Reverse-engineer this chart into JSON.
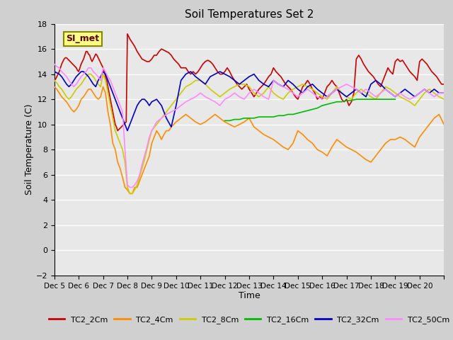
{
  "title": "Soil Temperatures Set 2",
  "xlabel": "Time",
  "ylabel": "Soil Temperature (C)",
  "ylim": [
    -2,
    18
  ],
  "yticks": [
    -2,
    0,
    2,
    4,
    6,
    8,
    10,
    12,
    14,
    16,
    18
  ],
  "x_start": 4,
  "x_end": 20,
  "x_tick_positions": [
    4,
    5,
    6,
    7,
    8,
    9,
    10,
    11,
    12,
    13,
    14,
    15,
    16,
    17,
    18,
    19,
    20
  ],
  "x_labels": [
    "Dec 5",
    "Dec 6",
    "Dec 7",
    "Dec 8",
    "Dec 9",
    "Dec 10",
    "Dec 11",
    "Dec 12",
    "Dec 13",
    "Dec 14",
    "Dec 15",
    "Dec 16",
    "Dec 17",
    "Dec 18",
    "Dec 19",
    "Dec 20",
    ""
  ],
  "background_color": "#e8e8e8",
  "grid_color": "#ffffff",
  "legend_entries": [
    "TC2_2Cm",
    "TC2_4Cm",
    "TC2_8Cm",
    "TC2_16Cm",
    "TC2_32Cm",
    "TC2_50Cm"
  ],
  "line_colors": [
    "#cc0000",
    "#ff8c00",
    "#cccc00",
    "#00bb00",
    "#0000cc",
    "#ff88ff"
  ],
  "annotation": {
    "text": "SI_met",
    "bg": "#ffff88",
    "border": "#888800"
  },
  "series": {
    "TC2_2Cm": {
      "x": [
        4.0,
        4.05,
        4.1,
        4.15,
        4.2,
        4.25,
        4.3,
        4.35,
        4.4,
        4.45,
        4.5,
        4.55,
        4.6,
        4.65,
        4.7,
        4.75,
        4.8,
        4.85,
        4.9,
        4.95,
        5.0,
        5.05,
        5.1,
        5.15,
        5.2,
        5.25,
        5.3,
        5.35,
        5.4,
        5.45,
        5.5,
        5.55,
        5.6,
        5.65,
        5.7,
        5.75,
        5.8,
        5.85,
        5.9,
        5.95,
        6.0,
        6.05,
        6.1,
        6.15,
        6.2,
        6.25,
        6.3,
        6.35,
        6.4,
        6.45,
        6.5,
        6.55,
        6.6,
        6.65,
        6.7,
        6.75,
        6.8,
        6.85,
        6.9,
        6.95,
        7.0,
        7.1,
        7.2,
        7.3,
        7.4,
        7.5,
        7.6,
        7.7,
        7.8,
        7.9,
        8.0,
        8.1,
        8.2,
        8.3,
        8.4,
        8.5,
        8.6,
        8.7,
        8.8,
        8.9,
        9.0,
        9.1,
        9.2,
        9.3,
        9.4,
        9.5,
        9.6,
        9.7,
        9.8,
        9.9,
        10.0,
        10.1,
        10.2,
        10.3,
        10.4,
        10.5,
        10.6,
        10.7,
        10.8,
        10.9,
        11.0,
        11.1,
        11.2,
        11.3,
        11.4,
        11.5,
        11.6,
        11.7,
        11.8,
        11.9,
        12.0,
        12.1,
        12.2,
        12.3,
        12.4,
        12.5,
        12.6,
        12.7,
        12.8,
        12.9,
        13.0,
        13.1,
        13.2,
        13.3,
        13.4,
        13.5,
        13.6,
        13.7,
        13.8,
        13.9,
        14.0,
        14.1,
        14.2,
        14.3,
        14.4,
        14.5,
        14.6,
        14.7,
        14.8,
        14.9,
        15.0,
        15.1,
        15.2,
        15.3,
        15.4,
        15.5,
        15.6,
        15.7,
        15.8,
        15.9,
        16.0,
        16.1,
        16.2,
        16.3,
        16.4,
        16.5,
        16.6,
        16.7,
        16.8,
        16.9,
        17.0,
        17.1,
        17.2,
        17.3,
        17.4,
        17.5,
        17.6,
        17.7,
        17.8,
        17.9,
        18.0,
        18.1,
        18.2,
        18.3,
        18.4,
        18.5,
        18.6,
        18.7,
        18.8,
        18.9,
        19.0,
        19.1,
        19.2,
        19.3,
        19.4,
        19.5,
        19.6,
        19.7,
        19.8,
        19.9,
        20.0
      ],
      "y": [
        13.5,
        13.6,
        13.8,
        14.0,
        14.2,
        14.5,
        14.8,
        15.0,
        15.2,
        15.3,
        15.3,
        15.2,
        15.1,
        15.0,
        14.9,
        14.8,
        14.7,
        14.6,
        14.5,
        14.3,
        14.2,
        14.5,
        14.8,
        15.0,
        15.2,
        15.5,
        15.8,
        15.8,
        15.6,
        15.5,
        15.2,
        15.0,
        15.2,
        15.4,
        15.6,
        15.5,
        15.3,
        15.1,
        14.9,
        14.7,
        14.5,
        14.2,
        13.8,
        13.5,
        13.0,
        12.5,
        12.0,
        11.5,
        11.0,
        10.5,
        10.0,
        9.8,
        9.5,
        9.6,
        9.7,
        9.8,
        9.9,
        10.0,
        10.1,
        10.2,
        17.2,
        16.8,
        16.5,
        16.2,
        15.8,
        15.5,
        15.2,
        15.1,
        15.0,
        15.0,
        15.2,
        15.5,
        15.5,
        15.8,
        16.0,
        15.9,
        15.8,
        15.7,
        15.5,
        15.2,
        15.0,
        14.8,
        14.5,
        14.5,
        14.5,
        14.2,
        14.0,
        14.2,
        14.0,
        14.2,
        14.5,
        14.8,
        15.0,
        15.1,
        15.0,
        14.8,
        14.5,
        14.2,
        14.0,
        14.0,
        14.2,
        14.5,
        14.2,
        13.8,
        13.5,
        13.2,
        13.0,
        12.8,
        13.0,
        13.2,
        12.8,
        12.5,
        12.2,
        12.5,
        12.8,
        13.0,
        13.2,
        13.5,
        13.8,
        14.0,
        14.5,
        14.2,
        14.0,
        13.8,
        13.5,
        13.2,
        13.0,
        12.8,
        12.5,
        12.2,
        12.0,
        12.5,
        13.0,
        13.2,
        13.5,
        13.2,
        12.8,
        12.5,
        12.0,
        12.2,
        12.0,
        12.5,
        13.0,
        13.2,
        13.5,
        13.2,
        13.0,
        12.5,
        12.0,
        11.8,
        12.0,
        11.5,
        11.8,
        12.5,
        15.2,
        15.5,
        15.2,
        14.8,
        14.5,
        14.2,
        14.0,
        13.8,
        13.5,
        13.2,
        13.0,
        13.5,
        14.0,
        14.5,
        14.2,
        14.0,
        15.0,
        15.2,
        15.0,
        15.1,
        14.8,
        14.5,
        14.2,
        14.0,
        13.8,
        13.5,
        15.0,
        15.2,
        15.0,
        14.8,
        14.5,
        14.2,
        14.0,
        13.8,
        13.5,
        13.2,
        13.2
      ]
    },
    "TC2_4Cm": {
      "x": [
        4.0,
        4.1,
        4.2,
        4.3,
        4.4,
        4.5,
        4.6,
        4.7,
        4.8,
        4.9,
        5.0,
        5.1,
        5.2,
        5.3,
        5.4,
        5.5,
        5.6,
        5.7,
        5.8,
        5.9,
        6.0,
        6.1,
        6.2,
        6.3,
        6.4,
        6.5,
        6.6,
        6.7,
        6.8,
        6.9,
        7.0,
        7.1,
        7.2,
        7.3,
        7.4,
        7.5,
        7.6,
        7.7,
        7.8,
        7.9,
        8.0,
        8.1,
        8.2,
        8.3,
        8.4,
        8.5,
        8.6,
        8.7,
        8.8,
        8.9,
        9.0,
        9.2,
        9.4,
        9.6,
        9.8,
        10.0,
        10.2,
        10.4,
        10.6,
        10.8,
        11.0,
        11.2,
        11.4,
        11.6,
        11.8,
        12.0,
        12.2,
        12.4,
        12.6,
        12.8,
        13.0,
        13.2,
        13.4,
        13.6,
        13.8,
        14.0,
        14.2,
        14.4,
        14.6,
        14.8,
        15.0,
        15.2,
        15.4,
        15.6,
        15.8,
        16.0,
        16.2,
        16.4,
        16.6,
        16.8,
        17.0,
        17.2,
        17.4,
        17.6,
        17.8,
        18.0,
        18.2,
        18.4,
        18.6,
        18.8,
        19.0,
        19.2,
        19.4,
        19.6,
        19.8,
        20.0
      ],
      "y": [
        13.0,
        12.8,
        12.5,
        12.2,
        12.0,
        11.8,
        11.5,
        11.2,
        11.0,
        11.2,
        11.5,
        12.0,
        12.2,
        12.5,
        12.8,
        12.8,
        12.5,
        12.2,
        12.0,
        12.2,
        13.0,
        12.5,
        11.0,
        10.0,
        8.5,
        8.0,
        7.0,
        6.5,
        5.8,
        5.0,
        4.8,
        4.5,
        4.5,
        5.0,
        5.0,
        5.5,
        6.0,
        6.5,
        7.0,
        7.5,
        8.5,
        9.0,
        9.5,
        9.2,
        8.8,
        9.2,
        9.5,
        9.5,
        9.8,
        10.0,
        10.2,
        10.5,
        10.8,
        10.5,
        10.2,
        10.0,
        10.2,
        10.5,
        10.8,
        10.5,
        10.2,
        10.0,
        9.8,
        10.0,
        10.2,
        10.5,
        9.8,
        9.5,
        9.2,
        9.0,
        8.8,
        8.5,
        8.2,
        8.0,
        8.5,
        9.5,
        9.2,
        8.8,
        8.5,
        8.0,
        7.8,
        7.5,
        8.2,
        8.8,
        8.5,
        8.2,
        8.0,
        7.8,
        7.5,
        7.2,
        7.0,
        7.5,
        8.0,
        8.5,
        8.8,
        8.8,
        9.0,
        8.8,
        8.5,
        8.2,
        9.0,
        9.5,
        10.0,
        10.5,
        10.8,
        10.0
      ]
    },
    "TC2_8Cm": {
      "x": [
        4.0,
        4.1,
        4.2,
        4.3,
        4.4,
        4.5,
        4.6,
        4.7,
        4.8,
        4.9,
        5.0,
        5.1,
        5.2,
        5.3,
        5.4,
        5.5,
        5.6,
        5.7,
        5.8,
        5.9,
        6.0,
        6.1,
        6.2,
        6.3,
        6.4,
        6.5,
        6.6,
        6.7,
        6.8,
        6.9,
        7.0,
        7.1,
        7.2,
        7.3,
        7.4,
        7.5,
        7.6,
        7.7,
        7.8,
        7.9,
        8.0,
        8.2,
        8.4,
        8.6,
        8.8,
        9.0,
        9.2,
        9.4,
        9.6,
        9.8,
        10.0,
        10.2,
        10.4,
        10.6,
        10.8,
        11.0,
        11.2,
        11.4,
        11.6,
        11.8,
        12.0,
        12.2,
        12.4,
        12.6,
        12.8,
        13.0,
        13.2,
        13.4,
        13.6,
        13.8,
        14.0,
        14.2,
        14.4,
        14.6,
        14.8,
        15.0,
        15.2,
        15.4,
        15.6,
        15.8,
        16.0,
        16.2,
        16.4,
        16.6,
        16.8,
        17.0,
        17.2,
        17.4,
        17.6,
        17.8,
        18.0,
        18.2,
        18.4,
        18.6,
        18.8,
        19.0,
        19.2,
        19.4,
        19.6,
        19.8,
        20.0
      ],
      "y": [
        13.5,
        13.3,
        13.0,
        12.8,
        12.5,
        12.2,
        12.0,
        12.2,
        12.5,
        12.8,
        13.0,
        13.2,
        13.5,
        13.8,
        14.0,
        14.0,
        13.8,
        13.5,
        13.2,
        13.0,
        14.0,
        13.5,
        12.5,
        11.5,
        10.5,
        9.5,
        9.0,
        8.5,
        8.0,
        7.0,
        5.0,
        4.5,
        4.5,
        4.8,
        5.2,
        5.8,
        6.5,
        7.2,
        8.0,
        8.8,
        9.5,
        10.0,
        10.5,
        11.0,
        11.5,
        12.0,
        12.5,
        13.0,
        13.2,
        13.5,
        13.5,
        13.2,
        12.8,
        12.5,
        12.2,
        12.5,
        12.8,
        13.0,
        13.2,
        13.2,
        13.0,
        12.5,
        12.2,
        12.5,
        13.0,
        12.5,
        12.2,
        12.0,
        12.5,
        12.8,
        13.0,
        13.2,
        13.0,
        12.8,
        12.5,
        12.2,
        12.0,
        12.5,
        13.0,
        12.5,
        12.2,
        12.0,
        12.5,
        12.8,
        12.5,
        12.2,
        12.0,
        12.5,
        13.0,
        12.8,
        12.5,
        12.2,
        12.0,
        11.8,
        11.5,
        12.0,
        12.5,
        12.8,
        12.5,
        12.2,
        12.0
      ]
    },
    "TC2_16Cm": {
      "x": [
        11.0,
        11.2,
        11.4,
        11.6,
        11.8,
        12.0,
        12.2,
        12.4,
        12.6,
        12.8,
        13.0,
        13.2,
        13.4,
        13.6,
        13.8,
        14.0,
        14.2,
        14.4,
        14.6,
        14.8,
        15.0,
        15.2,
        15.4,
        15.6,
        15.8,
        16.0,
        16.2,
        16.4,
        16.6,
        16.8,
        17.0,
        17.2,
        17.4,
        17.6,
        17.8,
        18.0
      ],
      "y": [
        10.3,
        10.3,
        10.4,
        10.4,
        10.5,
        10.5,
        10.5,
        10.6,
        10.6,
        10.6,
        10.6,
        10.7,
        10.7,
        10.8,
        10.8,
        10.9,
        11.0,
        11.1,
        11.2,
        11.3,
        11.5,
        11.6,
        11.7,
        11.8,
        11.8,
        11.9,
        11.9,
        12.0,
        12.0,
        12.0,
        12.0,
        12.0,
        12.0,
        12.0,
        12.0,
        12.0
      ]
    },
    "TC2_32Cm": {
      "x": [
        4.0,
        4.1,
        4.2,
        4.3,
        4.4,
        4.5,
        4.6,
        4.7,
        4.8,
        4.9,
        5.0,
        5.1,
        5.2,
        5.3,
        5.4,
        5.5,
        5.6,
        5.7,
        5.8,
        5.9,
        6.0,
        6.1,
        6.2,
        6.3,
        6.4,
        6.5,
        6.6,
        6.7,
        6.8,
        6.9,
        7.0,
        7.1,
        7.2,
        7.3,
        7.4,
        7.5,
        7.6,
        7.7,
        7.8,
        7.9,
        8.0,
        8.2,
        8.4,
        8.6,
        8.8,
        9.0,
        9.2,
        9.4,
        9.6,
        9.8,
        10.0,
        10.2,
        10.4,
        10.6,
        10.8,
        11.0,
        11.2,
        11.4,
        11.6,
        11.8,
        12.0,
        12.2,
        12.4,
        12.6,
        12.8,
        13.0,
        13.2,
        13.4,
        13.6,
        13.8,
        14.0,
        14.2,
        14.4,
        14.6,
        14.8,
        15.0,
        15.2,
        15.4,
        15.6,
        15.8,
        16.0,
        16.2,
        16.4,
        16.6,
        16.8,
        17.0,
        17.2,
        17.4,
        17.6,
        17.8,
        18.0,
        18.2,
        18.4,
        18.6,
        18.8,
        19.0,
        19.2,
        19.4,
        19.6,
        19.8,
        20.0
      ],
      "y": [
        14.2,
        14.1,
        14.0,
        13.8,
        13.5,
        13.2,
        13.0,
        13.2,
        13.5,
        13.8,
        14.0,
        14.2,
        14.2,
        14.0,
        13.8,
        13.5,
        13.2,
        13.0,
        13.5,
        13.8,
        14.2,
        14.0,
        13.5,
        13.0,
        12.5,
        12.0,
        11.5,
        11.0,
        10.5,
        10.0,
        9.5,
        10.0,
        10.5,
        11.0,
        11.5,
        11.8,
        12.0,
        12.0,
        11.8,
        11.5,
        11.8,
        12.0,
        11.5,
        10.5,
        9.8,
        11.5,
        13.5,
        14.0,
        14.2,
        13.8,
        13.5,
        13.2,
        13.8,
        14.0,
        14.2,
        14.0,
        13.8,
        13.5,
        13.2,
        13.5,
        13.8,
        14.0,
        13.5,
        13.2,
        13.0,
        13.5,
        13.2,
        13.0,
        13.5,
        13.2,
        12.8,
        12.5,
        13.0,
        13.2,
        12.8,
        12.5,
        12.2,
        12.5,
        12.8,
        12.5,
        12.2,
        12.5,
        12.8,
        12.5,
        12.2,
        13.2,
        13.5,
        13.2,
        12.8,
        12.5,
        12.2,
        12.5,
        12.8,
        12.5,
        12.2,
        12.5,
        12.8,
        12.5,
        12.8,
        12.5,
        12.5
      ]
    },
    "TC2_50Cm": {
      "x": [
        4.0,
        4.1,
        4.2,
        4.3,
        4.4,
        4.5,
        4.6,
        4.7,
        4.8,
        4.9,
        5.0,
        5.1,
        5.2,
        5.3,
        5.4,
        5.5,
        5.6,
        5.7,
        5.8,
        5.9,
        6.0,
        6.1,
        6.2,
        6.3,
        6.4,
        6.5,
        6.6,
        6.7,
        6.8,
        6.9,
        7.0,
        7.1,
        7.2,
        7.3,
        7.4,
        7.5,
        7.6,
        7.7,
        7.8,
        7.9,
        8.0,
        8.2,
        8.4,
        8.6,
        8.8,
        9.0,
        9.2,
        9.4,
        9.6,
        9.8,
        10.0,
        10.2,
        10.4,
        10.6,
        10.8,
        11.0,
        11.2,
        11.4,
        11.6,
        11.8,
        12.0,
        12.2,
        12.4,
        12.6,
        12.8,
        13.0,
        13.2,
        13.4,
        13.6,
        13.8,
        14.0,
        14.2,
        14.4,
        14.6,
        14.8,
        15.0,
        15.2,
        15.4,
        15.6,
        15.8,
        16.0,
        16.2,
        16.4,
        16.6,
        16.8,
        17.0,
        17.2,
        17.4,
        17.6,
        17.8,
        18.0,
        18.2,
        18.4,
        18.6,
        18.8,
        19.0,
        19.2,
        19.4,
        19.6,
        19.8,
        20.0
      ],
      "y": [
        14.8,
        14.6,
        14.5,
        14.2,
        14.0,
        13.8,
        13.5,
        13.2,
        13.0,
        13.2,
        13.5,
        13.8,
        14.0,
        14.2,
        14.5,
        14.5,
        14.2,
        14.0,
        13.8,
        13.5,
        14.5,
        14.2,
        13.8,
        13.5,
        13.0,
        12.5,
        12.0,
        11.5,
        11.0,
        8.0,
        5.2,
        5.0,
        5.0,
        5.2,
        5.5,
        6.0,
        6.8,
        7.5,
        8.2,
        9.0,
        9.5,
        10.2,
        10.5,
        10.8,
        11.0,
        11.2,
        11.5,
        11.8,
        12.0,
        12.2,
        12.5,
        12.2,
        12.0,
        11.8,
        11.5,
        12.0,
        12.2,
        12.5,
        12.2,
        12.0,
        12.5,
        12.8,
        12.5,
        12.2,
        12.0,
        13.5,
        13.2,
        13.0,
        12.8,
        12.5,
        12.2,
        12.5,
        12.8,
        12.5,
        12.2,
        12.0,
        12.2,
        12.5,
        12.8,
        13.0,
        13.2,
        13.0,
        12.8,
        12.5,
        12.8,
        12.5,
        12.2,
        12.5,
        12.8,
        12.5,
        12.2,
        12.5,
        12.2,
        12.0,
        12.2,
        12.5,
        12.8,
        12.5,
        12.2,
        12.5,
        12.5
      ]
    }
  }
}
